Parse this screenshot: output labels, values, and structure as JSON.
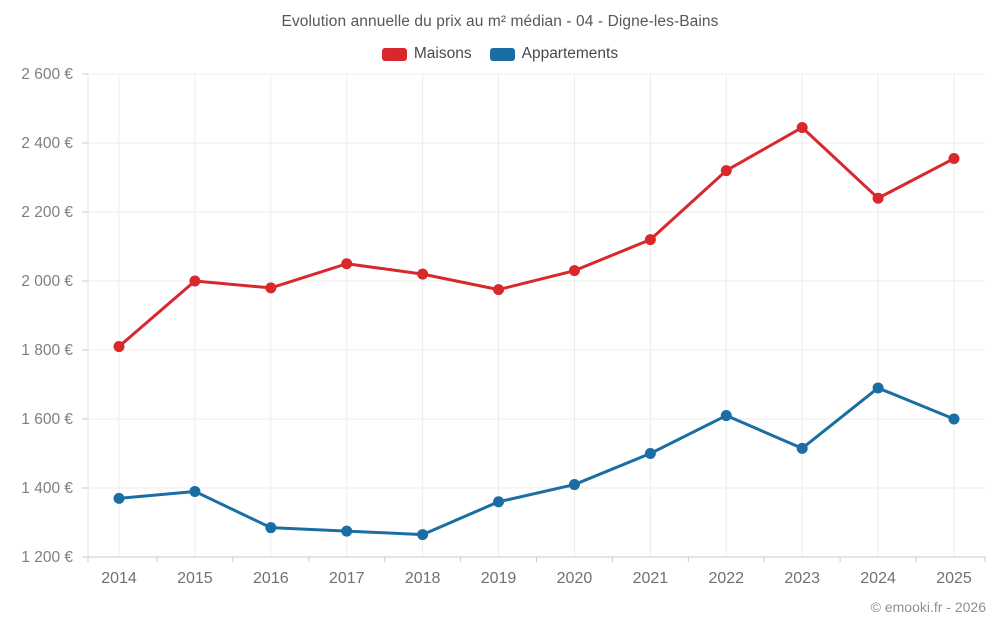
{
  "page": {
    "footer": "© emooki.fr - 2026",
    "background_color": "#ffffff"
  },
  "chart_data": {
    "type": "line",
    "title": "Evolution annuelle du prix au m² médian - 04 - Digne-les-Bains",
    "categories": [
      "2014",
      "2015",
      "2016",
      "2017",
      "2018",
      "2019",
      "2020",
      "2021",
      "2022",
      "2023",
      "2024",
      "2025"
    ],
    "series": [
      {
        "name": "Maisons",
        "color": "#d8282c",
        "values": [
          1810,
          2000,
          1980,
          2050,
          2020,
          1975,
          2030,
          2120,
          2320,
          2445,
          2240,
          2355
        ]
      },
      {
        "name": "Appartements",
        "color": "#1a6ea4",
        "values": [
          1370,
          1390,
          1285,
          1275,
          1265,
          1360,
          1410,
          1500,
          1610,
          1515,
          1690,
          1600
        ]
      }
    ],
    "xlabel": "",
    "ylabel": "",
    "ylim": [
      1200,
      2600
    ],
    "y_tick_step": 200,
    "y_tick_labels": [
      "1 200 €",
      "1 400 €",
      "1 600 €",
      "1 800 €",
      "2 000 €",
      "2 200 €",
      "2 400 €",
      "2 600 €"
    ],
    "grid": true,
    "legend_position": "top",
    "colors": {
      "grid_line": "#ececec",
      "axis_line": "#c9cbcd",
      "tick_label": "#7c8084",
      "x_label": "#6d7175"
    }
  }
}
